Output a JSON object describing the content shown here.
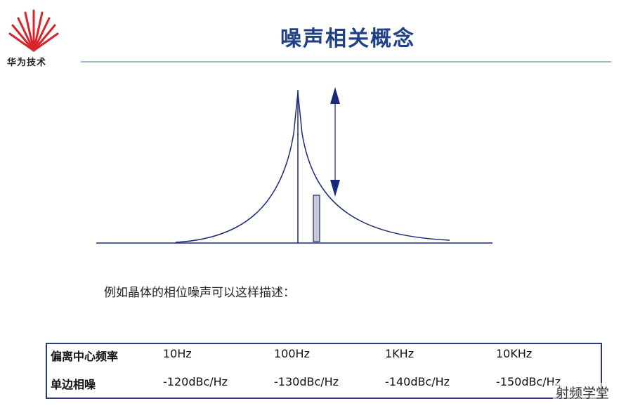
{
  "header": {
    "logo_text": "华为技术",
    "title": "噪声相关概念"
  },
  "caption": "例如晶体的相位噪声可以这样描述：",
  "table": {
    "rows": [
      [
        "偏离中心频率",
        "10Hz",
        "100Hz",
        "1KHz",
        "10KHz"
      ],
      [
        "单边相噪",
        "-120dBc/Hz",
        "-130dBc/Hz",
        "-140dBc/Hz",
        "-150dBc/Hz"
      ]
    ]
  },
  "watermark": "射频学堂"
}
